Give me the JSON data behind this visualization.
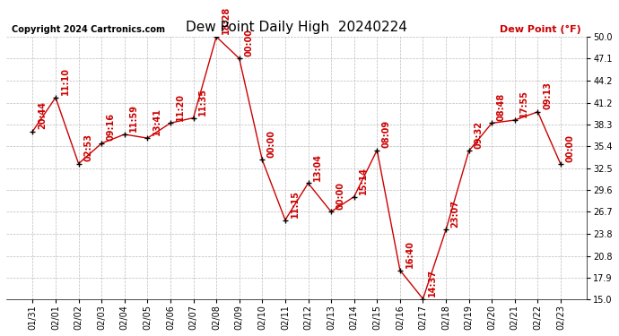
{
  "title": "Dew Point Daily High  20240224",
  "ylabel_text": "Dew Point (°F)",
  "copyright": "Copyright 2024 Cartronics.com",
  "background_color": "#ffffff",
  "plot_background": "#ffffff",
  "grid_color": "#bbbbbb",
  "line_color": "#cc0000",
  "text_color": "#cc0000",
  "dates": [
    "01/31",
    "02/01",
    "02/02",
    "02/03",
    "02/04",
    "02/05",
    "02/06",
    "02/07",
    "02/08",
    "02/09",
    "02/10",
    "02/11",
    "02/12",
    "02/13",
    "02/14",
    "02/15",
    "02/16",
    "02/17",
    "02/18",
    "02/19",
    "02/20",
    "02/21",
    "02/22",
    "02/23"
  ],
  "values": [
    37.4,
    41.9,
    33.1,
    35.8,
    37.0,
    36.5,
    38.5,
    39.2,
    50.0,
    47.1,
    33.6,
    25.6,
    30.5,
    26.7,
    28.7,
    34.9,
    18.9,
    15.1,
    24.3,
    34.8,
    38.5,
    38.9,
    40.0,
    33.0
  ],
  "point_labels": [
    "20:44",
    "11:10",
    "02:53",
    "09:16",
    "11:59",
    "13:41",
    "11:20",
    "11:35",
    "18:28",
    "00:00",
    "00:00",
    "11:15",
    "13:04",
    "00:00",
    "15:14",
    "08:09",
    "16:40",
    "14:37",
    "23:07",
    "09:32",
    "08:48",
    "17:55",
    "09:13",
    "00:00"
  ],
  "ylim": [
    15.0,
    50.0
  ],
  "yticks": [
    15.0,
    17.9,
    20.8,
    23.8,
    26.7,
    29.6,
    32.5,
    35.4,
    38.3,
    41.2,
    44.2,
    47.1,
    50.0
  ],
  "title_fontsize": 11,
  "tick_fontsize": 7,
  "annotation_fontsize": 7,
  "copyright_fontsize": 7,
  "ylabel_fontsize": 8
}
